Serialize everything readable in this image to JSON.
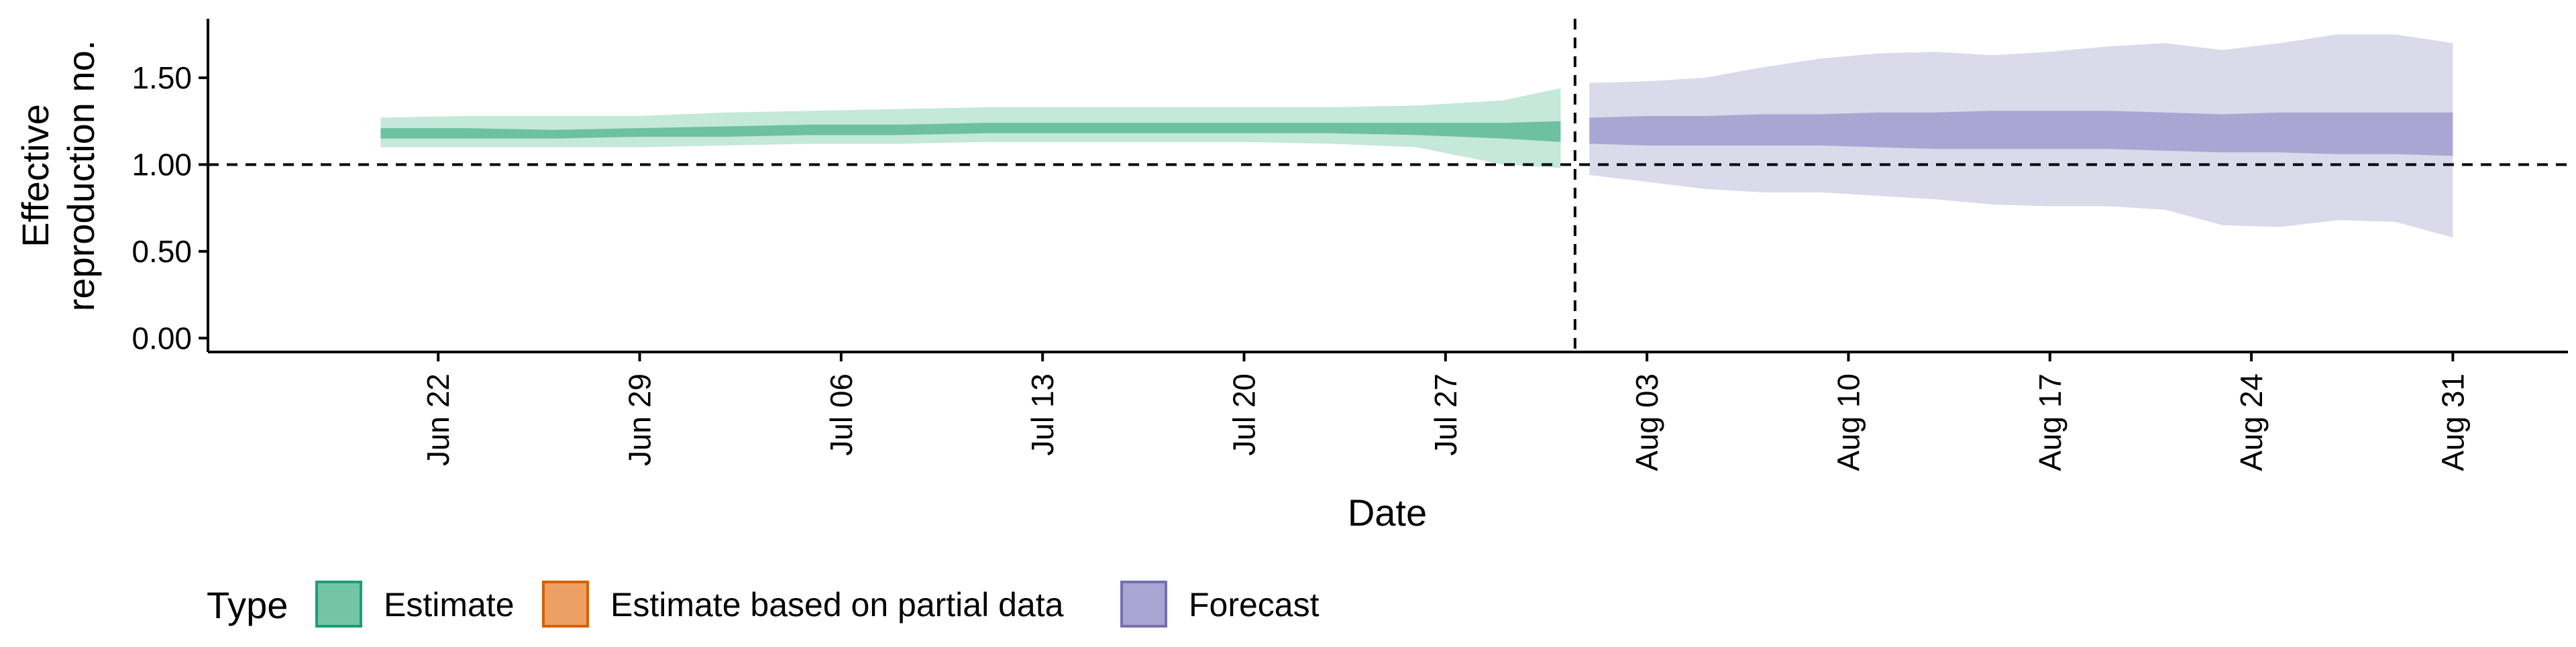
{
  "chart_data": {
    "type": "area",
    "xlabel": "Date",
    "ylabel": [
      "Effective",
      "reproduction no."
    ],
    "x_ticks": [
      "Jun 22",
      "Jun 29",
      "Jul 06",
      "Jul 13",
      "Jul 20",
      "Jul 27",
      "Aug 03",
      "Aug 10",
      "Aug 17",
      "Aug 24",
      "Aug 31"
    ],
    "y_ticks": [
      "0.00",
      "0.50",
      "1.00",
      "1.50"
    ],
    "x_range": [
      "2020-06-14",
      "2020-09-04"
    ],
    "ylim": [
      -0.08,
      1.84
    ],
    "reference_line_y": 1.0,
    "forecast_start": "2020-08-01",
    "legend": {
      "title": "Type",
      "position": "bottom",
      "items": [
        {
          "label": "Estimate",
          "fill": "#74c5a7",
          "stroke": "#1b9e77"
        },
        {
          "label": "Estimate based on partial data",
          "fill": "#eca064",
          "stroke": "#d95f02"
        },
        {
          "label": "Forecast",
          "fill": "#a9a6d3",
          "stroke": "#7570b3"
        }
      ]
    },
    "series": [
      {
        "type_label": "Estimate",
        "outer_color": "#c4e8da",
        "inner_color": "#6dc1a0",
        "points": [
          {
            "date": "2020-06-20",
            "lower90": 1.1,
            "lower50": 1.15,
            "upper50": 1.21,
            "upper90": 1.27
          },
          {
            "date": "2020-06-23",
            "lower90": 1.1,
            "lower50": 1.15,
            "upper50": 1.21,
            "upper90": 1.28
          },
          {
            "date": "2020-06-26",
            "lower90": 1.1,
            "lower50": 1.15,
            "upper50": 1.2,
            "upper90": 1.28
          },
          {
            "date": "2020-06-29",
            "lower90": 1.1,
            "lower50": 1.16,
            "upper50": 1.21,
            "upper90": 1.28
          },
          {
            "date": "2020-07-02",
            "lower90": 1.11,
            "lower50": 1.16,
            "upper50": 1.22,
            "upper90": 1.3
          },
          {
            "date": "2020-07-05",
            "lower90": 1.12,
            "lower50": 1.17,
            "upper50": 1.23,
            "upper90": 1.31
          },
          {
            "date": "2020-07-08",
            "lower90": 1.12,
            "lower50": 1.17,
            "upper50": 1.23,
            "upper90": 1.32
          },
          {
            "date": "2020-07-11",
            "lower90": 1.13,
            "lower50": 1.18,
            "upper50": 1.24,
            "upper90": 1.33
          },
          {
            "date": "2020-07-14",
            "lower90": 1.13,
            "lower50": 1.18,
            "upper50": 1.24,
            "upper90": 1.33
          },
          {
            "date": "2020-07-17",
            "lower90": 1.13,
            "lower50": 1.18,
            "upper50": 1.24,
            "upper90": 1.33
          },
          {
            "date": "2020-07-20",
            "lower90": 1.13,
            "lower50": 1.18,
            "upper50": 1.24,
            "upper90": 1.33
          },
          {
            "date": "2020-07-23",
            "lower90": 1.12,
            "lower50": 1.18,
            "upper50": 1.24,
            "upper90": 1.33
          },
          {
            "date": "2020-07-26",
            "lower90": 1.1,
            "lower50": 1.17,
            "upper50": 1.24,
            "upper90": 1.34
          },
          {
            "date": "2020-07-29",
            "lower90": 1.0,
            "lower50": 1.15,
            "upper50": 1.24,
            "upper90": 1.37
          },
          {
            "date": "2020-07-31",
            "lower90": 0.98,
            "lower50": 1.13,
            "upper50": 1.25,
            "upper90": 1.44
          }
        ]
      },
      {
        "type_label": "Forecast",
        "outer_color": "#dbdaeb",
        "inner_color": "#a9a6d3",
        "points": [
          {
            "date": "2020-08-01",
            "lower90": 0.94,
            "lower50": 1.12,
            "upper50": 1.27,
            "upper90": 1.47
          },
          {
            "date": "2020-08-03",
            "lower90": 0.9,
            "lower50": 1.11,
            "upper50": 1.28,
            "upper90": 1.48
          },
          {
            "date": "2020-08-05",
            "lower90": 0.86,
            "lower50": 1.11,
            "upper50": 1.28,
            "upper90": 1.5
          },
          {
            "date": "2020-08-07",
            "lower90": 0.84,
            "lower50": 1.11,
            "upper50": 1.29,
            "upper90": 1.56
          },
          {
            "date": "2020-08-09",
            "lower90": 0.84,
            "lower50": 1.11,
            "upper50": 1.29,
            "upper90": 1.61
          },
          {
            "date": "2020-08-11",
            "lower90": 0.82,
            "lower50": 1.1,
            "upper50": 1.3,
            "upper90": 1.64
          },
          {
            "date": "2020-08-13",
            "lower90": 0.8,
            "lower50": 1.09,
            "upper50": 1.3,
            "upper90": 1.65
          },
          {
            "date": "2020-08-15",
            "lower90": 0.77,
            "lower50": 1.09,
            "upper50": 1.31,
            "upper90": 1.63
          },
          {
            "date": "2020-08-17",
            "lower90": 0.76,
            "lower50": 1.09,
            "upper50": 1.31,
            "upper90": 1.65
          },
          {
            "date": "2020-08-19",
            "lower90": 0.76,
            "lower50": 1.09,
            "upper50": 1.31,
            "upper90": 1.68
          },
          {
            "date": "2020-08-21",
            "lower90": 0.74,
            "lower50": 1.08,
            "upper50": 1.3,
            "upper90": 1.7
          },
          {
            "date": "2020-08-23",
            "lower90": 0.65,
            "lower50": 1.07,
            "upper50": 1.29,
            "upper90": 1.66
          },
          {
            "date": "2020-08-25",
            "lower90": 0.64,
            "lower50": 1.07,
            "upper50": 1.3,
            "upper90": 1.7
          },
          {
            "date": "2020-08-27",
            "lower90": 0.68,
            "lower50": 1.06,
            "upper50": 1.3,
            "upper90": 1.75
          },
          {
            "date": "2020-08-29",
            "lower90": 0.67,
            "lower50": 1.06,
            "upper50": 1.3,
            "upper90": 1.75
          },
          {
            "date": "2020-08-31",
            "lower90": 0.58,
            "lower50": 1.05,
            "upper50": 1.3,
            "upper90": 1.7
          }
        ]
      }
    ]
  }
}
